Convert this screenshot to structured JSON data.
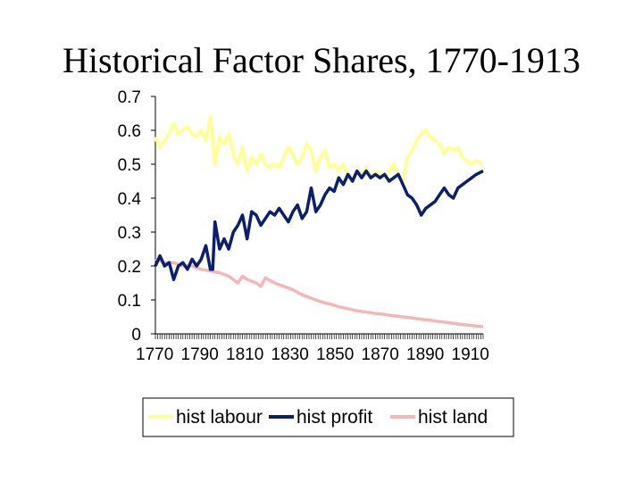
{
  "title": "Historical Factor Shares, 1770-1913",
  "colors": {
    "labour": "#ffff99",
    "profit": "#0a1f6e",
    "land": "#f4b6b6",
    "axis": "#000000"
  },
  "chart_data": {
    "type": "line",
    "title": "Historical Factor Shares, 1770-1913",
    "xlabel": "",
    "ylabel": "",
    "xlim": [
      1770,
      1913
    ],
    "ylim": [
      0,
      0.7
    ],
    "y_ticks": [
      {
        "value": 0,
        "label": "0"
      },
      {
        "value": 0.1,
        "label": "0.1"
      },
      {
        "value": 0.2,
        "label": "0.2"
      },
      {
        "value": 0.3,
        "label": "0.3"
      },
      {
        "value": 0.4,
        "label": "0.4"
      },
      {
        "value": 0.5,
        "label": "0.5"
      },
      {
        "value": 0.6,
        "label": "0.6"
      },
      {
        "value": 0.7,
        "label": "0.7"
      }
    ],
    "x_tick_labels": [
      "1770",
      "1790",
      "1810",
      "1830",
      "1850",
      "1870",
      "1890",
      "1910"
    ],
    "legend_position": "bottom",
    "series": [
      {
        "name": "hist labour",
        "key": "labour",
        "points": [
          [
            1770,
            0.58
          ],
          [
            1772,
            0.55
          ],
          [
            1774,
            0.57
          ],
          [
            1776,
            0.59
          ],
          [
            1778,
            0.62
          ],
          [
            1780,
            0.59
          ],
          [
            1782,
            0.6
          ],
          [
            1784,
            0.61
          ],
          [
            1786,
            0.59
          ],
          [
            1788,
            0.58
          ],
          [
            1790,
            0.6
          ],
          [
            1792,
            0.57
          ],
          [
            1794,
            0.64
          ],
          [
            1796,
            0.5
          ],
          [
            1798,
            0.58
          ],
          [
            1800,
            0.56
          ],
          [
            1802,
            0.59
          ],
          [
            1804,
            0.53
          ],
          [
            1806,
            0.5
          ],
          [
            1808,
            0.55
          ],
          [
            1810,
            0.48
          ],
          [
            1812,
            0.52
          ],
          [
            1814,
            0.5
          ],
          [
            1816,
            0.53
          ],
          [
            1818,
            0.5
          ],
          [
            1820,
            0.49
          ],
          [
            1822,
            0.5
          ],
          [
            1824,
            0.49
          ],
          [
            1826,
            0.52
          ],
          [
            1828,
            0.55
          ],
          [
            1830,
            0.53
          ],
          [
            1832,
            0.5
          ],
          [
            1834,
            0.52
          ],
          [
            1836,
            0.56
          ],
          [
            1838,
            0.54
          ],
          [
            1840,
            0.48
          ],
          [
            1842,
            0.52
          ],
          [
            1844,
            0.54
          ],
          [
            1846,
            0.49
          ],
          [
            1848,
            0.5
          ],
          [
            1850,
            0.48
          ],
          [
            1852,
            0.5
          ],
          [
            1854,
            0.47
          ],
          [
            1856,
            0.45
          ],
          [
            1858,
            0.48
          ],
          [
            1860,
            0.47
          ],
          [
            1862,
            0.49
          ],
          [
            1864,
            0.46
          ],
          [
            1866,
            0.48
          ],
          [
            1868,
            0.47
          ],
          [
            1870,
            0.46
          ],
          [
            1872,
            0.48
          ],
          [
            1874,
            0.5
          ],
          [
            1876,
            0.47
          ],
          [
            1878,
            0.45
          ],
          [
            1880,
            0.52
          ],
          [
            1882,
            0.54
          ],
          [
            1884,
            0.57
          ],
          [
            1886,
            0.59
          ],
          [
            1888,
            0.6
          ],
          [
            1890,
            0.58
          ],
          [
            1892,
            0.57
          ],
          [
            1894,
            0.56
          ],
          [
            1896,
            0.53
          ],
          [
            1898,
            0.55
          ],
          [
            1900,
            0.54
          ],
          [
            1902,
            0.55
          ],
          [
            1904,
            0.52
          ],
          [
            1906,
            0.51
          ],
          [
            1908,
            0.5
          ],
          [
            1910,
            0.51
          ],
          [
            1913,
            0.5
          ]
        ]
      },
      {
        "name": "hist profit",
        "key": "profit",
        "points": [
          [
            1770,
            0.2
          ],
          [
            1772,
            0.23
          ],
          [
            1774,
            0.2
          ],
          [
            1776,
            0.21
          ],
          [
            1778,
            0.16
          ],
          [
            1780,
            0.2
          ],
          [
            1782,
            0.21
          ],
          [
            1784,
            0.19
          ],
          [
            1786,
            0.22
          ],
          [
            1788,
            0.2
          ],
          [
            1790,
            0.22
          ],
          [
            1792,
            0.26
          ],
          [
            1794,
            0.19
          ],
          [
            1795,
            0.19
          ],
          [
            1796,
            0.33
          ],
          [
            1798,
            0.25
          ],
          [
            1800,
            0.28
          ],
          [
            1802,
            0.25
          ],
          [
            1804,
            0.3
          ],
          [
            1806,
            0.32
          ],
          [
            1808,
            0.35
          ],
          [
            1810,
            0.28
          ],
          [
            1812,
            0.36
          ],
          [
            1814,
            0.35
          ],
          [
            1816,
            0.32
          ],
          [
            1818,
            0.34
          ],
          [
            1820,
            0.36
          ],
          [
            1822,
            0.35
          ],
          [
            1824,
            0.37
          ],
          [
            1826,
            0.35
          ],
          [
            1828,
            0.33
          ],
          [
            1830,
            0.36
          ],
          [
            1832,
            0.38
          ],
          [
            1834,
            0.34
          ],
          [
            1836,
            0.36
          ],
          [
            1838,
            0.43
          ],
          [
            1840,
            0.36
          ],
          [
            1842,
            0.38
          ],
          [
            1844,
            0.41
          ],
          [
            1846,
            0.43
          ],
          [
            1848,
            0.42
          ],
          [
            1850,
            0.46
          ],
          [
            1852,
            0.44
          ],
          [
            1854,
            0.47
          ],
          [
            1856,
            0.45
          ],
          [
            1858,
            0.48
          ],
          [
            1860,
            0.46
          ],
          [
            1862,
            0.48
          ],
          [
            1864,
            0.46
          ],
          [
            1866,
            0.47
          ],
          [
            1868,
            0.46
          ],
          [
            1870,
            0.47
          ],
          [
            1872,
            0.45
          ],
          [
            1874,
            0.46
          ],
          [
            1876,
            0.47
          ],
          [
            1878,
            0.44
          ],
          [
            1880,
            0.41
          ],
          [
            1882,
            0.4
          ],
          [
            1884,
            0.38
          ],
          [
            1886,
            0.35
          ],
          [
            1888,
            0.37
          ],
          [
            1890,
            0.38
          ],
          [
            1892,
            0.39
          ],
          [
            1894,
            0.41
          ],
          [
            1896,
            0.43
          ],
          [
            1898,
            0.41
          ],
          [
            1900,
            0.4
          ],
          [
            1902,
            0.43
          ],
          [
            1904,
            0.44
          ],
          [
            1906,
            0.45
          ],
          [
            1908,
            0.46
          ],
          [
            1910,
            0.47
          ],
          [
            1913,
            0.48
          ]
        ]
      },
      {
        "name": "hist land",
        "key": "land",
        "points": [
          [
            1770,
            0.22
          ],
          [
            1774,
            0.21
          ],
          [
            1778,
            0.21
          ],
          [
            1782,
            0.2
          ],
          [
            1786,
            0.2
          ],
          [
            1790,
            0.19
          ],
          [
            1794,
            0.185
          ],
          [
            1798,
            0.18
          ],
          [
            1802,
            0.17
          ],
          [
            1804,
            0.16
          ],
          [
            1806,
            0.15
          ],
          [
            1808,
            0.17
          ],
          [
            1810,
            0.16
          ],
          [
            1814,
            0.15
          ],
          [
            1816,
            0.14
          ],
          [
            1818,
            0.165
          ],
          [
            1822,
            0.15
          ],
          [
            1826,
            0.14
          ],
          [
            1830,
            0.13
          ],
          [
            1834,
            0.115
          ],
          [
            1838,
            0.105
          ],
          [
            1842,
            0.095
          ],
          [
            1846,
            0.088
          ],
          [
            1850,
            0.08
          ],
          [
            1854,
            0.074
          ],
          [
            1858,
            0.068
          ],
          [
            1862,
            0.064
          ],
          [
            1866,
            0.06
          ],
          [
            1870,
            0.057
          ],
          [
            1874,
            0.053
          ],
          [
            1878,
            0.05
          ],
          [
            1882,
            0.047
          ],
          [
            1886,
            0.043
          ],
          [
            1890,
            0.04
          ],
          [
            1894,
            0.036
          ],
          [
            1898,
            0.033
          ],
          [
            1902,
            0.029
          ],
          [
            1906,
            0.026
          ],
          [
            1910,
            0.023
          ],
          [
            1913,
            0.021
          ]
        ]
      }
    ]
  }
}
